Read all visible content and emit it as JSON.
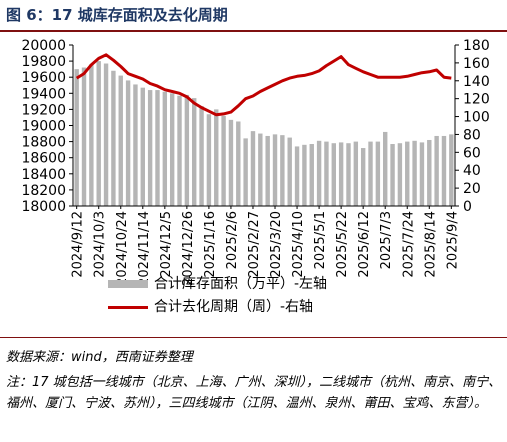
{
  "title": "图 6：17 城库存面积及去化周期",
  "source": "数据来源：wind，西南证券整理",
  "note": "注：17 城包括一线城市（北京、上海、广州、深圳），二线城市（杭州、南京、南宁、福州、厦门、宁波、苏州），三四线城市（江阴、温州、泉州、莆田、宝鸡、东营）。",
  "colors": {
    "bars": "#b5b5b5",
    "line": "#c00000",
    "title": "#1f3864",
    "rule": "#7f1010"
  },
  "chart_data": {
    "type": "bar+line",
    "categories": [
      "2024/9/12",
      "2024/10/3",
      "2024/10/24",
      "2024/11/14",
      "2024/12/5",
      "2024/12/26",
      "2025/1/16",
      "2025/2/6",
      "2025/2/27",
      "2025/3/20",
      "2025/4/10",
      "2025/5/1",
      "2025/5/22",
      "2025/6/12",
      "2025/7/3",
      "2025/7/24",
      "2025/8/14",
      "2025/9/4"
    ],
    "x": [
      "2024/9/12",
      "2024/9/19",
      "2024/9/26",
      "2024/10/3",
      "2024/10/10",
      "2024/10/17",
      "2024/10/24",
      "2024/10/31",
      "2024/11/7",
      "2024/11/14",
      "2024/11/21",
      "2024/11/28",
      "2024/12/5",
      "2024/12/12",
      "2024/12/19",
      "2024/12/26",
      "2025/1/2",
      "2025/1/9",
      "2025/1/16",
      "2025/1/23",
      "2025/1/30",
      "2025/2/6",
      "2025/2/13",
      "2025/2/20",
      "2025/2/27",
      "2025/3/6",
      "2025/3/13",
      "2025/3/20",
      "2025/3/27",
      "2025/4/3",
      "2025/4/10",
      "2025/4/17",
      "2025/4/24",
      "2025/5/1",
      "2025/5/8",
      "2025/5/15",
      "2025/5/22",
      "2025/5/29",
      "2025/6/5",
      "2025/6/12",
      "2025/6/19",
      "2025/6/26",
      "2025/7/3",
      "2025/7/10",
      "2025/7/17",
      "2025/7/24",
      "2025/7/31",
      "2025/8/7",
      "2025/8/14",
      "2025/8/21",
      "2025/8/28",
      "2025/9/4"
    ],
    "series": [
      {
        "name": "合计库存面积（万平）-左轴",
        "type": "bar",
        "axis": "left",
        "values": [
          19700,
          19720,
          19760,
          19800,
          19770,
          19680,
          19620,
          19560,
          19510,
          19470,
          19440,
          19440,
          19420,
          19400,
          19370,
          19380,
          19340,
          19240,
          19140,
          19200,
          19120,
          19070,
          19050,
          18840,
          18930,
          18900,
          18870,
          18890,
          18880,
          18850,
          18740,
          18760,
          18770,
          18810,
          18800,
          18780,
          18790,
          18780,
          18800,
          18720,
          18800,
          18800,
          18920,
          18770,
          18780,
          18800,
          18810,
          18790,
          18820,
          18870,
          18870,
          18890
        ]
      },
      {
        "name": "合计去化周期（周）-右轴",
        "type": "line",
        "axis": "right",
        "values": [
          143,
          148,
          158,
          165,
          169,
          163,
          156,
          148,
          145,
          142,
          137,
          134,
          130,
          128,
          126,
          122,
          115,
          110,
          106,
          102,
          103,
          105,
          112,
          120,
          123,
          128,
          132,
          136,
          140,
          143,
          145,
          146,
          148,
          151,
          157,
          162,
          167,
          158,
          154,
          150,
          147,
          144,
          144,
          144,
          144,
          145,
          147,
          149,
          150,
          152,
          144,
          143
        ]
      }
    ],
    "y_left": {
      "min": 18000,
      "max": 20000,
      "step": 200
    },
    "y_right": {
      "min": 0,
      "max": 180,
      "step": 20
    },
    "legend_position": "bottom",
    "grid": false
  }
}
